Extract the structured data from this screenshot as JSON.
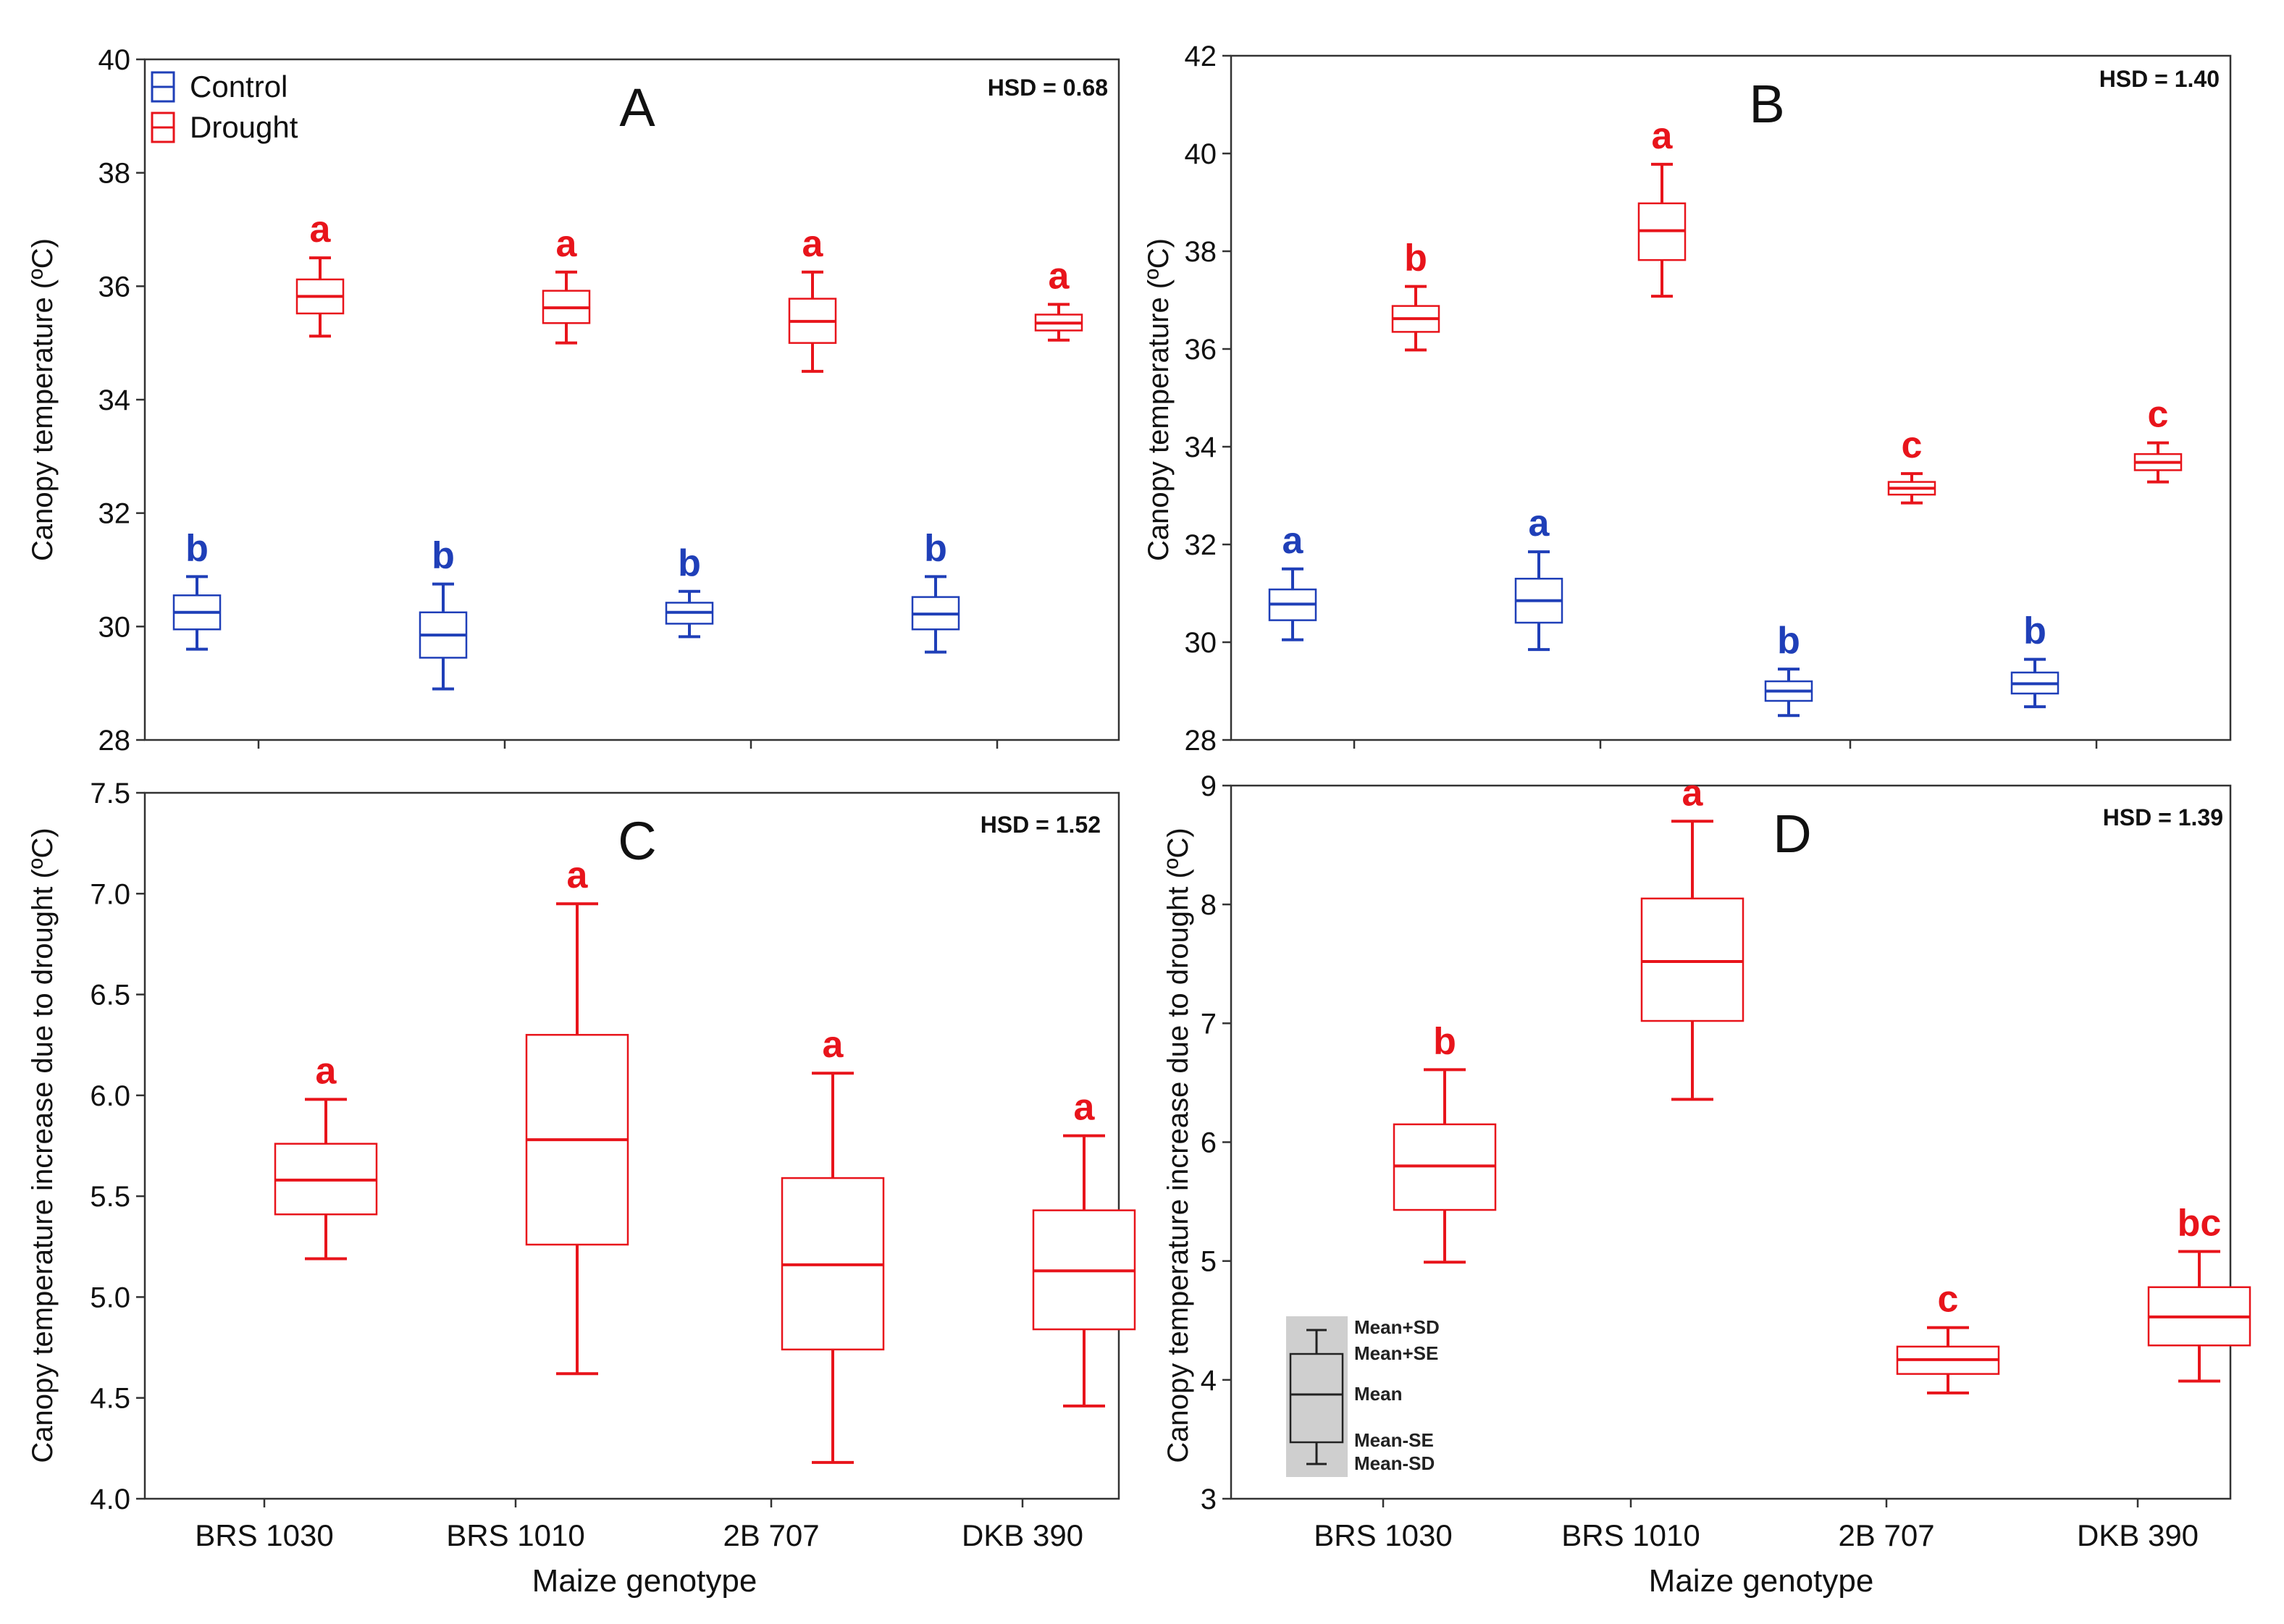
{
  "figure": {
    "xlabel": "Maize genotype",
    "categories": [
      "BRS 1030",
      "BRS 1010",
      "2B 707",
      "DKB 390"
    ]
  },
  "legend": {
    "control": "Control",
    "drought": "Drought",
    "control_color": "#1f3fb8",
    "drought_color": "#e8141b"
  },
  "inset_legend": {
    "mean_plus_sd": "Mean+SD",
    "mean_plus_se": "Mean+SE",
    "mean": "Mean",
    "mean_minus_se": "Mean-SE",
    "mean_minus_sd": "Mean-SD"
  },
  "chart_data": [
    {
      "panel": "A",
      "type": "box",
      "title": "A",
      "hsd": "HSD = 0.68",
      "ylabel": "Canopy temperature (ºC)",
      "ylim": [
        28,
        40
      ],
      "yticks": [
        28,
        30,
        32,
        34,
        36,
        38,
        40
      ],
      "show_x_labels": false,
      "categories": [
        "BRS 1030",
        "BRS 1010",
        "2B 707",
        "DKB 390"
      ],
      "series": [
        {
          "name": "Control",
          "color": "#1f3fb8",
          "labels": [
            "b",
            "b",
            "b",
            "b"
          ],
          "mean": [
            30.25,
            29.85,
            30.25,
            30.22
          ],
          "se_low": [
            29.95,
            29.45,
            30.05,
            29.95
          ],
          "se_high": [
            30.55,
            30.25,
            30.42,
            30.52
          ],
          "sd_low": [
            29.6,
            28.9,
            29.82,
            29.55
          ],
          "sd_high": [
            30.88,
            30.75,
            30.62,
            30.88
          ]
        },
        {
          "name": "Drought",
          "color": "#e8141b",
          "labels": [
            "a",
            "a",
            "a",
            "a"
          ],
          "mean": [
            35.82,
            35.62,
            35.38,
            35.35
          ],
          "se_low": [
            35.52,
            35.35,
            35.0,
            35.22
          ],
          "se_high": [
            36.12,
            35.92,
            35.78,
            35.5
          ],
          "sd_low": [
            35.12,
            35.0,
            34.5,
            35.05
          ],
          "sd_high": [
            36.5,
            36.25,
            36.25,
            35.68
          ]
        }
      ]
    },
    {
      "panel": "B",
      "type": "box",
      "title": "B",
      "hsd": "HSD = 1.40",
      "ylabel": "Canopy temperature (ºC)",
      "ylim": [
        28,
        42
      ],
      "yticks": [
        28,
        30,
        32,
        34,
        36,
        38,
        40,
        42
      ],
      "show_x_labels": false,
      "categories": [
        "BRS 1030",
        "BRS 1010",
        "2B 707",
        "DKB 390"
      ],
      "series": [
        {
          "name": "Control",
          "color": "#1f3fb8",
          "labels": [
            "a",
            "a",
            "b",
            "b"
          ],
          "mean": [
            30.78,
            30.85,
            29.0,
            29.15
          ],
          "se_low": [
            30.45,
            30.4,
            28.8,
            28.95
          ],
          "se_high": [
            31.08,
            31.3,
            29.2,
            29.38
          ],
          "sd_low": [
            30.05,
            29.85,
            28.5,
            28.68
          ],
          "sd_high": [
            31.5,
            31.85,
            29.45,
            29.65
          ]
        },
        {
          "name": "Drought",
          "color": "#e8141b",
          "labels": [
            "b",
            "a",
            "c",
            "c"
          ],
          "mean": [
            36.62,
            38.42,
            33.15,
            33.68
          ],
          "se_low": [
            36.35,
            37.82,
            33.02,
            33.52
          ],
          "se_high": [
            36.88,
            38.98,
            33.28,
            33.85
          ],
          "sd_low": [
            35.98,
            37.08,
            32.85,
            33.28
          ],
          "sd_high": [
            37.28,
            39.78,
            33.45,
            34.08
          ]
        }
      ]
    },
    {
      "panel": "C",
      "type": "box",
      "title": "C",
      "hsd": "HSD = 1.52",
      "ylabel": "Canopy temperature increase due to drought (ºC)",
      "ylim": [
        4.0,
        7.5
      ],
      "yticks": [
        "4.0",
        "4.5",
        "5.0",
        "5.5",
        "6.0",
        "6.5",
        "7.0",
        "7.5"
      ],
      "show_x_labels": true,
      "categories": [
        "BRS 1030",
        "BRS 1010",
        "2B 707",
        "DKB 390"
      ],
      "series": [
        {
          "name": "Drought",
          "color": "#e8141b",
          "labels": [
            "a",
            "a",
            "a",
            "a"
          ],
          "mean": [
            5.58,
            5.78,
            5.16,
            5.13
          ],
          "se_low": [
            5.41,
            5.26,
            4.74,
            4.84
          ],
          "se_high": [
            5.76,
            6.3,
            5.59,
            5.43
          ],
          "sd_low": [
            5.19,
            4.62,
            4.18,
            4.46
          ],
          "sd_high": [
            5.98,
            6.95,
            6.11,
            5.8
          ]
        }
      ]
    },
    {
      "panel": "D",
      "type": "box",
      "title": "D",
      "hsd": "HSD = 1.39",
      "ylabel": "Canopy temperature increase due to drought (ºC)",
      "ylim": [
        3,
        9
      ],
      "yticks": [
        3,
        4,
        5,
        6,
        7,
        8,
        9
      ],
      "show_x_labels": true,
      "categories": [
        "BRS 1030",
        "BRS 1010",
        "2B 707",
        "DKB 390"
      ],
      "series": [
        {
          "name": "Drought",
          "color": "#e8141b",
          "labels": [
            "b",
            "a",
            "c",
            "bc"
          ],
          "mean": [
            5.8,
            7.52,
            4.17,
            4.53
          ],
          "se_low": [
            5.43,
            7.02,
            4.05,
            4.29
          ],
          "se_high": [
            6.15,
            8.05,
            4.28,
            4.78
          ],
          "sd_low": [
            4.99,
            6.36,
            3.89,
            3.99
          ],
          "sd_high": [
            6.61,
            8.7,
            4.44,
            5.08
          ]
        }
      ]
    }
  ]
}
